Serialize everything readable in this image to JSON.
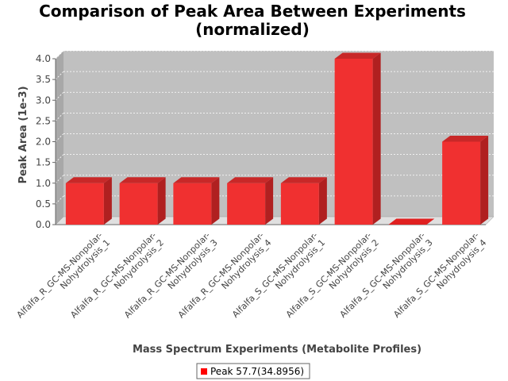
{
  "chart_data": {
    "type": "bar",
    "title_line1": "Comparison of Peak Area Between Experiments",
    "title_line2": "(normalized)",
    "xlabel": "Mass Spectrum Experiments (Metabolite Profiles)",
    "ylabel": "Peak Area (1e-3)",
    "ylim": [
      0,
      4.0
    ],
    "yticks": [
      "0.0",
      "0.5",
      "1.0",
      "1.5",
      "2.0",
      "2.5",
      "3.0",
      "3.5",
      "4.0"
    ],
    "grid": true,
    "legend_position": "bottom-center",
    "categories": [
      [
        "Alfalfa_R_GC-MS-Nonpolar-",
        "Nohydrolysis_1"
      ],
      [
        "Alfalfa_R_GC-MS-Nonpolar-",
        "Nohydrolysis_2"
      ],
      [
        "Alfalfa_R_GC-MS-Nonpolar-",
        "Nohydrolysis_3"
      ],
      [
        "Alfalfa_R_GC-MS-Nonpolar-",
        "Nohydrolysis_4"
      ],
      [
        "Alfalfa_S_GC-MS-Nonpolar-",
        "Nohydrolysis_1"
      ],
      [
        "Alfalfa_S_GC-MS-Nonpolar-",
        "Nohydrolysis_2"
      ],
      [
        "Alfalfa_S_GC-MS-Nonpolar-",
        "Nohydrolysis_3"
      ],
      [
        "Alfalfa_S_GC-MS-Nonpolar-",
        "Nohydrolysis_4"
      ]
    ],
    "series": [
      {
        "name": "Peak 57.7(34.8956)",
        "color": "#ff0000",
        "values": [
          1.0,
          1.0,
          1.0,
          1.0,
          1.0,
          4.0,
          0.0,
          2.0
        ]
      }
    ]
  }
}
